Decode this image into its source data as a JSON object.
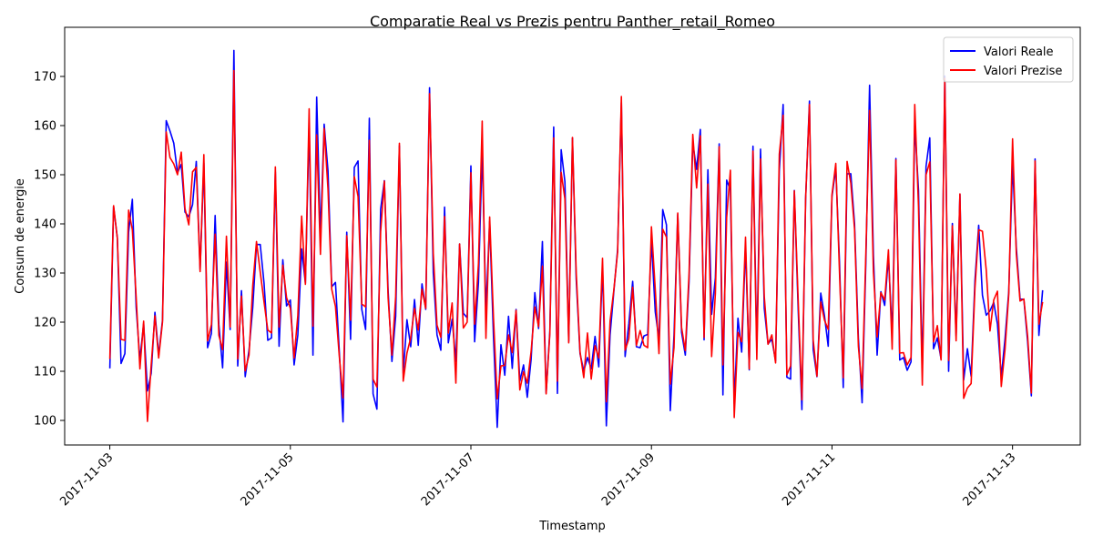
{
  "chart_data": {
    "type": "line",
    "title": "Comparatie Real vs Prezis pentru Panther_retail_Romeo",
    "xlabel": "Timestamp",
    "ylabel": "Consum de energie",
    "x_tick_labels": [
      "2017-11-03",
      "2017-11-05",
      "2017-11-07",
      "2017-11-09",
      "2017-11-11",
      "2017-11-13"
    ],
    "x_range": [
      "2017-11-02 12:00",
      "2017-11-13 18:00"
    ],
    "ylim": [
      95,
      180
    ],
    "yticks": [
      100,
      110,
      120,
      130,
      140,
      150,
      160,
      170
    ],
    "legend_position": "top-right",
    "start": "2017-11-03 00:00",
    "step_hours": 1,
    "series": [
      {
        "name": "Valori Reale",
        "color": "#0000ff",
        "values": [
          110.6,
          143.5,
          137.2,
          111.6,
          113.6,
          138.3,
          145,
          123,
          112.3,
          119.7,
          106,
          109.6,
          122,
          113.3,
          120.4,
          161,
          158.9,
          156.4,
          150.4,
          152.1,
          142.4,
          141.4,
          143.9,
          152.7,
          130.7,
          152.4,
          114.8,
          117.7,
          141.7,
          119.5,
          110.7,
          132.2,
          118.5,
          175.3,
          111.1,
          126.4,
          108.9,
          114.3,
          123,
          135.8,
          135.8,
          127.9,
          116.3,
          116.8,
          150.6,
          115.1,
          132.7,
          123.3,
          124.5,
          111.3,
          117.4,
          134.9,
          127.9,
          160.5,
          113.3,
          165.8,
          137.4,
          160.3,
          150.8,
          127.2,
          128.1,
          114.1,
          99.7,
          138.3,
          116.5,
          151.5,
          152.8,
          122.6,
          118.5,
          161.5,
          105.4,
          102.3,
          143,
          148.8,
          126.4,
          112,
          121.2,
          155.9,
          109.6,
          120.5,
          115,
          124.6,
          115.3,
          127.8,
          122.6,
          167.7,
          130,
          117.4,
          114.3,
          143.4,
          115.8,
          120.6,
          112,
          135.9,
          121.8,
          120.9,
          151.8,
          116,
          128.1,
          155,
          122.2,
          140.5,
          117,
          98.6,
          115.4,
          109.2,
          121.2,
          110.6,
          122.6,
          108,
          111.3,
          104.7,
          112.4,
          126,
          118.7,
          136.4,
          105.6,
          118.2,
          159.7,
          105.5,
          155.1,
          148.6,
          116.1,
          157.5,
          128.8,
          113.6,
          110.1,
          112.8,
          110.5,
          117.1,
          110.9,
          131.3,
          98.9,
          117.4,
          126.2,
          134.8,
          164.7,
          113,
          119.7,
          128.3,
          115,
          114.8,
          117.2,
          117.5,
          136.6,
          122.1,
          116.4,
          142.9,
          139.8,
          102,
          117.4,
          141.9,
          117.9,
          113.3,
          128.3,
          156.4,
          151.1,
          159.2,
          116.4,
          151,
          121.6,
          129,
          156.3,
          105.2,
          148.9,
          146.9,
          103.4,
          120.8,
          113.9,
          135.6,
          110.3,
          155.8,
          114.8,
          155.2,
          122.8,
          115.6,
          116.5,
          112.1,
          150.8,
          164.3,
          108.8,
          108.4,
          146.8,
          122.7,
          102.2,
          145.1,
          165,
          114.4,
          108.9,
          125.9,
          121.3,
          115.1,
          145.5,
          151.3,
          132.1,
          106.7,
          150.2,
          150.2,
          140.1,
          116.8,
          103.6,
          132,
          168.2,
          133.7,
          113.3,
          126.2,
          123.4,
          133.2,
          117.6,
          153.3,
          112.3,
          112.8,
          110.2,
          111.9,
          160.4,
          146.9,
          110.1,
          151.7,
          157.5,
          114.6,
          116.8,
          112.5,
          170.1,
          110,
          140.1,
          117.2,
          146,
          108.2,
          114.6,
          109,
          128.5,
          139.7,
          125.5,
          121.4,
          122.3,
          124,
          119.6,
          108.8,
          116.6,
          126.2,
          152.2,
          135.2,
          124.8,
          124.6,
          116.1,
          105,
          153.2,
          117.3,
          126.5
        ]
      },
      {
        "name": "Valori Prezise",
        "color": "#ff0000",
        "values": [
          112.5,
          143.7,
          137.1,
          116.5,
          116.3,
          142.8,
          138.8,
          125.1,
          110.5,
          120.2,
          99.8,
          111.3,
          121.3,
          112.7,
          120,
          158.7,
          153.5,
          152.2,
          150,
          154.6,
          143.1,
          139.8,
          150.6,
          151.5,
          130.3,
          154.1,
          116.2,
          119.5,
          137.9,
          117.3,
          114.4,
          137.5,
          119,
          171.2,
          112.5,
          125.3,
          110.1,
          113.3,
          127.4,
          136.4,
          130.2,
          124.1,
          118.4,
          117.8,
          151.6,
          119,
          131.6,
          125,
          122.8,
          112.7,
          121.4,
          141.6,
          127.7,
          163.4,
          119.2,
          158.1,
          133.8,
          159.4,
          147.1,
          126.7,
          123.2,
          113.1,
          104.6,
          137.6,
          120.4,
          149.6,
          145.6,
          123.7,
          123.1,
          157,
          108.4,
          106.8,
          138.4,
          148.7,
          124.9,
          113.3,
          125.2,
          156.4,
          108,
          113.7,
          116.8,
          122.8,
          118.4,
          126.7,
          122.8,
          166.5,
          134,
          119.4,
          116.9,
          141.5,
          117.8,
          123.9,
          107.6,
          135.9,
          118.8,
          120,
          150.4,
          119.6,
          131.9,
          160.9,
          116.7,
          141.4,
          120.9,
          104.4,
          111.1,
          111.2,
          117.4,
          113.8,
          122.4,
          106.2,
          109.9,
          107.6,
          114,
          123.1,
          119.1,
          131.4,
          105.4,
          117.8,
          157.5,
          108,
          150.5,
          145.1,
          115.8,
          157.6,
          130.2,
          114,
          108.7,
          117.8,
          108.4,
          115.2,
          112.7,
          133,
          103.8,
          120.2,
          126.5,
          134.3,
          165.9,
          114.3,
          116.6,
          127.1,
          115.3,
          118.3,
          115.3,
          114.8,
          139.4,
          126.7,
          113.6,
          138.9,
          137.3,
          107.4,
          114.8,
          142.2,
          118.9,
          114.2,
          129.8,
          158.2,
          147.3,
          157.9,
          116.9,
          148.1,
          113,
          125.8,
          155.7,
          111.3,
          141.3,
          150.9,
          100.6,
          117.9,
          116,
          137.3,
          110.5,
          154.8,
          112.4,
          153.2,
          125.2,
          115.5,
          117.4,
          111.7,
          154.2,
          162.1,
          109.3,
          111.1,
          146.7,
          124.6,
          104.2,
          145.2,
          164.3,
          116.4,
          109,
          124.1,
          120.4,
          118.5,
          145.9,
          152.3,
          130,
          108.7,
          152.7,
          148.3,
          138.9,
          115.1,
          106.5,
          133.9,
          163.1,
          130.3,
          117,
          126,
          124.5,
          134.7,
          114.5,
          153,
          113.7,
          113.8,
          111.3,
          112.8,
          164.3,
          143.6,
          107.2,
          150,
          152.6,
          116,
          119.3,
          112.3,
          169.6,
          112.2,
          139.6,
          116.2,
          146.1,
          104.5,
          106.6,
          107.5,
          126.9,
          138.8,
          138.5,
          130.6,
          118.2,
          124.5,
          126.3,
          106.9,
          114.4,
          125.6,
          157.3,
          133.9,
          124.3,
          124.7,
          117.2,
          105.6,
          152.8,
          119.6,
          124.1
        ]
      }
    ]
  }
}
